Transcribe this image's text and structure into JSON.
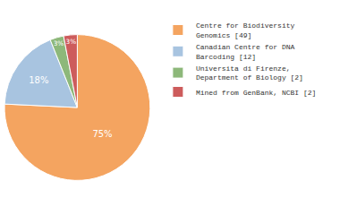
{
  "chart_data": {
    "type": "pie",
    "labels": [
      "Centre for Biodiversity\nGenomics [49]",
      "Canadian Centre for DNA\nBarcoding [12]",
      "Universita di Firenze,\nDepartment of Biology [2]",
      "Mined from GenBank, NCBI [2]"
    ],
    "values": [
      75,
      18,
      3,
      3
    ],
    "value_labels": [
      "75%",
      "18%",
      "3%",
      "3%"
    ],
    "colors": [
      "#F4A460",
      "#A8C4E0",
      "#8DB87A",
      "#CD5C5C"
    ],
    "data_labels": true,
    "legend": "right"
  }
}
